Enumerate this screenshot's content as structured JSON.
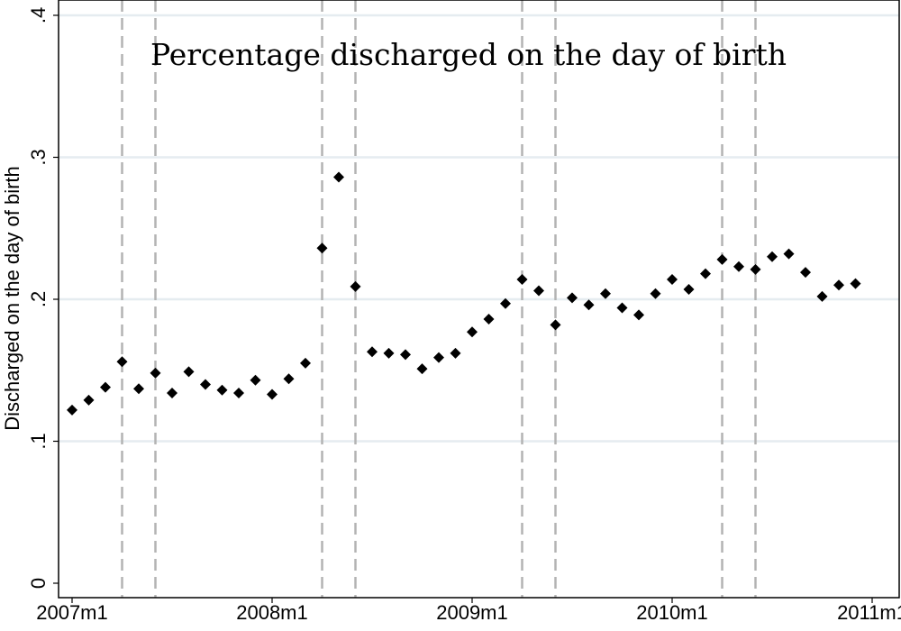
{
  "chart_data": {
    "type": "scatter",
    "title": "Percentage discharged on the day of birth",
    "xlabel": "",
    "ylabel": "Discharged on the day of birth",
    "ylim": [
      0,
      0.4
    ],
    "y_ticks": [
      {
        "value": 0,
        "label": "0"
      },
      {
        "value": 0.1,
        "label": ".1"
      },
      {
        "value": 0.2,
        "label": ".2"
      },
      {
        "value": 0.3,
        "label": ".3"
      },
      {
        "value": 0.4,
        "label": ".4"
      }
    ],
    "x_ticks": [
      "2007m1",
      "2008m1",
      "2009m1",
      "2010m1",
      "2011m1"
    ],
    "grid": true,
    "marker": "diamond",
    "vertical_reference_lines": [
      "2007m4",
      "2007m6",
      "2008m4",
      "2008m6",
      "2009m4",
      "2009m6",
      "2010m4",
      "2010m6"
    ],
    "x": [
      "2007m1",
      "2007m2",
      "2007m3",
      "2007m4",
      "2007m5",
      "2007m6",
      "2007m7",
      "2007m8",
      "2007m9",
      "2007m10",
      "2007m11",
      "2007m12",
      "2008m1",
      "2008m2",
      "2008m3",
      "2008m4",
      "2008m5",
      "2008m6",
      "2008m7",
      "2008m8",
      "2008m9",
      "2008m10",
      "2008m11",
      "2008m12",
      "2009m1",
      "2009m2",
      "2009m3",
      "2009m4",
      "2009m5",
      "2009m6",
      "2009m7",
      "2009m8",
      "2009m9",
      "2009m10",
      "2009m11",
      "2009m12",
      "2010m1",
      "2010m2",
      "2010m3",
      "2010m4",
      "2010m5",
      "2010m6",
      "2010m7",
      "2010m8",
      "2010m9",
      "2010m10",
      "2010m11",
      "2010m12"
    ],
    "y": [
      0.122,
      0.129,
      0.138,
      0.156,
      0.137,
      0.148,
      0.134,
      0.149,
      0.14,
      0.136,
      0.134,
      0.143,
      0.133,
      0.144,
      0.155,
      0.236,
      0.286,
      0.209,
      0.163,
      0.162,
      0.161,
      0.151,
      0.159,
      0.162,
      0.177,
      0.186,
      0.197,
      0.214,
      0.206,
      0.182,
      0.201,
      0.196,
      0.204,
      0.194,
      0.189,
      0.204,
      0.214,
      0.207,
      0.218,
      0.228,
      0.223,
      0.221,
      0.23,
      0.232,
      0.219,
      0.202,
      0.21,
      0.211
    ]
  },
  "colors": {
    "marker": "#000000",
    "gridline": "#e5ecf0",
    "reference_line": "#b3b3b3",
    "frame": "#000000"
  }
}
